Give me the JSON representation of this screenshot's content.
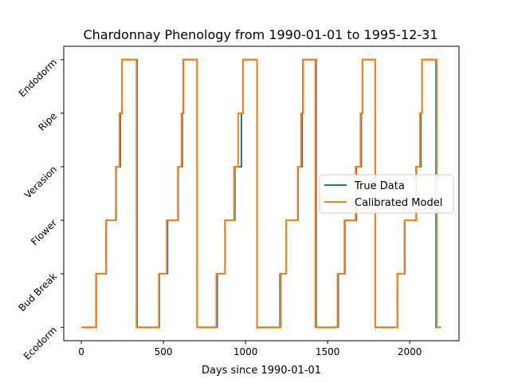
{
  "chart_data": {
    "type": "line",
    "title": "Chardonnay Phenology from 1990-01-01 to 1995-12-31",
    "xlabel": "Days since 1990-01-01",
    "ylabel": "",
    "xlim": [
      -107,
      2300
    ],
    "ylim": [
      -0.25,
      5.25
    ],
    "xticks": [
      0,
      500,
      1000,
      1500,
      2000
    ],
    "xtick_labels": [
      "0",
      "500",
      "1000",
      "1500",
      "2000"
    ],
    "yticks": [
      0,
      1,
      2,
      3,
      4,
      5
    ],
    "ytick_labels": [
      "Ecodorm",
      "Bud Break",
      "Flower",
      "Verasion",
      "Ripe",
      "Endodorm"
    ],
    "legend": {
      "position": "center-right"
    },
    "grid": false,
    "series": [
      {
        "name": "True Data",
        "color": "#1f77b4",
        "steps": [
          [
            0,
            0
          ],
          [
            90,
            1
          ],
          [
            152,
            2
          ],
          [
            212,
            3
          ],
          [
            238,
            4
          ],
          [
            248,
            5
          ],
          [
            340,
            0
          ],
          [
            475,
            1
          ],
          [
            525,
            2
          ],
          [
            590,
            3
          ],
          [
            615,
            4
          ],
          [
            622,
            5
          ],
          [
            705,
            0
          ],
          [
            828,
            1
          ],
          [
            875,
            2
          ],
          [
            935,
            3
          ],
          [
            975,
            4
          ],
          [
            985,
            5
          ],
          [
            1070,
            0
          ],
          [
            1210,
            1
          ],
          [
            1248,
            2
          ],
          [
            1320,
            3
          ],
          [
            1345,
            4
          ],
          [
            1350,
            5
          ],
          [
            1430,
            0
          ],
          [
            1565,
            1
          ],
          [
            1605,
            2
          ],
          [
            1675,
            3
          ],
          [
            1705,
            4
          ],
          [
            1712,
            5
          ],
          [
            1790,
            0
          ],
          [
            1925,
            1
          ],
          [
            1970,
            2
          ],
          [
            2040,
            3
          ],
          [
            2068,
            4
          ],
          [
            2075,
            5
          ],
          [
            2160,
            0
          ],
          [
            2190,
            0
          ]
        ]
      },
      {
        "name": "Calibrated Model",
        "color": "#ff7f0e",
        "steps": [
          [
            0,
            0
          ],
          [
            92,
            1
          ],
          [
            150,
            2
          ],
          [
            210,
            3
          ],
          [
            232,
            4
          ],
          [
            248,
            5
          ],
          [
            336,
            0
          ],
          [
            472,
            1
          ],
          [
            520,
            2
          ],
          [
            588,
            3
          ],
          [
            610,
            4
          ],
          [
            620,
            5
          ],
          [
            705,
            0
          ],
          [
            822,
            1
          ],
          [
            875,
            2
          ],
          [
            930,
            3
          ],
          [
            955,
            4
          ],
          [
            985,
            5
          ],
          [
            1070,
            0
          ],
          [
            1215,
            1
          ],
          [
            1248,
            2
          ],
          [
            1318,
            3
          ],
          [
            1338,
            4
          ],
          [
            1350,
            5
          ],
          [
            1425,
            0
          ],
          [
            1560,
            1
          ],
          [
            1602,
            2
          ],
          [
            1670,
            3
          ],
          [
            1700,
            4
          ],
          [
            1712,
            5
          ],
          [
            1790,
            0
          ],
          [
            1925,
            1
          ],
          [
            1968,
            2
          ],
          [
            2038,
            3
          ],
          [
            2062,
            4
          ],
          [
            2075,
            5
          ],
          [
            2165,
            0
          ],
          [
            2190,
            0
          ]
        ]
      }
    ]
  }
}
